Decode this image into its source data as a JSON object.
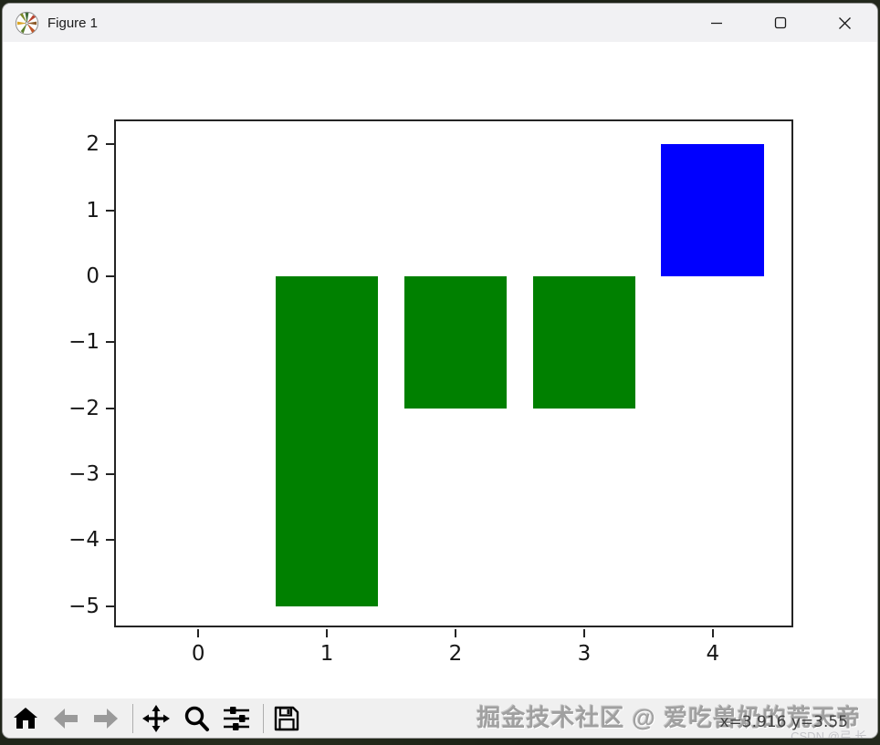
{
  "window": {
    "title": "Figure 1",
    "controls": [
      "minimize-icon",
      "maximize-icon",
      "close-icon"
    ]
  },
  "chart_data": {
    "type": "bar",
    "x": [
      1,
      2,
      3,
      4
    ],
    "values": [
      -5,
      -2,
      -2,
      2
    ],
    "bar_width": 0.8,
    "bar_colors": [
      "#008000",
      "#008000",
      "#008000",
      "#0000ff"
    ],
    "xticks": [
      0,
      1,
      2,
      3,
      4
    ],
    "xtick_labels": [
      "0",
      "1",
      "2",
      "3",
      "4"
    ],
    "yticks": [
      2,
      1,
      0,
      -1,
      -2,
      -3,
      -4,
      -5
    ],
    "ytick_labels": [
      "2",
      "1",
      "0",
      "−1",
      "−2",
      "−3",
      "−4",
      "−5"
    ],
    "xlim": [
      -0.64,
      4.64
    ],
    "ylim": [
      -5.35,
      2.35
    ],
    "title": "",
    "xlabel": "",
    "ylabel": "",
    "grid": false,
    "legend": null
  },
  "toolbar": {
    "tools": [
      {
        "id": "home",
        "icon": "home-icon",
        "enabled": true
      },
      {
        "id": "back",
        "icon": "arrow-left-icon",
        "enabled": false
      },
      {
        "id": "forward",
        "icon": "arrow-right-icon",
        "enabled": false
      },
      {
        "id": "pan",
        "icon": "move-arrows-icon",
        "enabled": true
      },
      {
        "id": "zoom",
        "icon": "magnifier-icon",
        "enabled": true
      },
      {
        "id": "configure-subplots",
        "icon": "sliders-icon",
        "enabled": true
      },
      {
        "id": "save",
        "icon": "floppy-disk-icon",
        "enabled": true
      }
    ]
  },
  "statusbar": {
    "coords": "x=3.916 y=3.55"
  },
  "watermarks": {
    "juejin": "掘金技术社区 @ 爱吃兽奶的荒天帝",
    "csdn": "CSDN @弓.长."
  },
  "colors": {
    "bar_green": "#008000",
    "bar_blue": "#0000ff",
    "axes_spine": "#242424",
    "titlebar_bg": "#f1f1f3",
    "toolbar_bg": "#f0f0f0",
    "canvas_bg": "#ffffff"
  }
}
